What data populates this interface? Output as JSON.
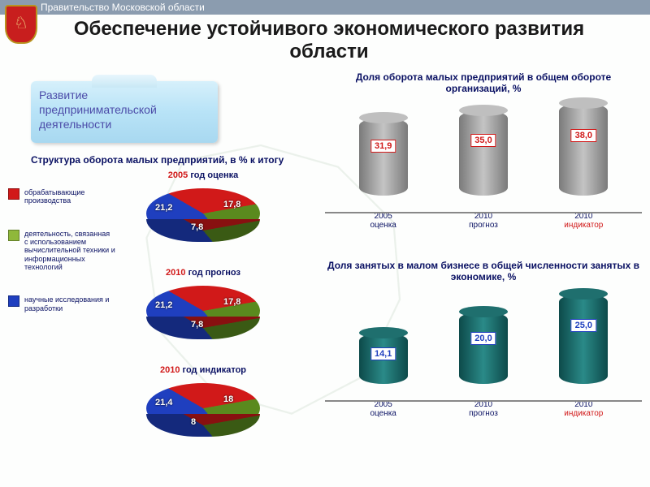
{
  "header": {
    "org": "Правительство Московской области"
  },
  "title": "Обеспечение устойчивого экономического развития области",
  "callout": {
    "line1": "Развитие",
    "line2": "предпринимательской",
    "line3": "деятельности"
  },
  "structure_title": "Структура оборота малых предприятий, в % к итогу",
  "legend": [
    {
      "color": "#d11919",
      "label": "обрабатывающие производства"
    },
    {
      "color": "#8fb83a",
      "label": "деятельность, связанная с использованием вычислительной техники и информационных технологий"
    },
    {
      "color": "#1f3fbf",
      "label": "научные исследования и разработки"
    }
  ],
  "pies": [
    {
      "year": "2005",
      "suffix": "год оценка",
      "slices": {
        "blue": "21,2",
        "green": "7,8",
        "red": "17,8"
      }
    },
    {
      "year": "2010",
      "suffix": "год прогноз",
      "slices": {
        "blue": "21,2",
        "green": "7,8",
        "red": "17,8"
      }
    },
    {
      "year": "2010",
      "suffix": "год индикатор",
      "slices": {
        "blue": "21,4",
        "green": "8",
        "red": "18"
      }
    }
  ],
  "pie_colors": {
    "blue": "#1f3fbf",
    "green": "#5a8a1e",
    "red": "#d11919"
  },
  "cylcharts": [
    {
      "title": "Доля оборота малых предприятий в общем обороте организаций, %",
      "color_body": "linear-gradient(90deg,#7a7a7a,#c4c4c4,#7a7a7a)",
      "color_top": "#bfbfbf",
      "val_border": "#d11919",
      "max": 40,
      "bars": [
        {
          "label1": "2005",
          "label2": "оценка",
          "label2_color": "#0a1163",
          "value": "31,9",
          "num": 31.9
        },
        {
          "label1": "2010",
          "label2": "прогноз",
          "label2_color": "#0a1163",
          "value": "35,0",
          "num": 35.0
        },
        {
          "label1": "2010",
          "label2": "индикатор",
          "label2_color": "#d11919",
          "value": "38,0",
          "num": 38.0
        }
      ]
    },
    {
      "title": "Доля занятых в малом бизнесе в общей численности занятых в экономике, %",
      "color_body": "linear-gradient(90deg,#0d4a4a,#2a8a88,#0d4a4a)",
      "color_top": "#1f6f6e",
      "val_border": "#1f3fbf",
      "max": 27,
      "bars": [
        {
          "label1": "2005",
          "label2": "оценка",
          "label2_color": "#0a1163",
          "value": "14,1",
          "num": 14.1
        },
        {
          "label1": "2010",
          "label2": "прогноз",
          "label2_color": "#0a1163",
          "value": "20,0",
          "num": 20.0
        },
        {
          "label1": "2010",
          "label2": "индикатор",
          "label2_color": "#d11919",
          "value": "25,0",
          "num": 25.0
        }
      ]
    }
  ]
}
